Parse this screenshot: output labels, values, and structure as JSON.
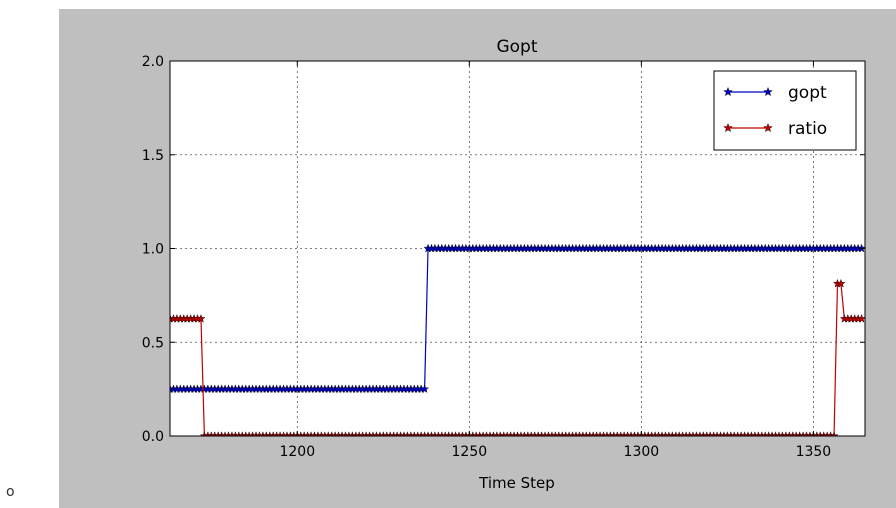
{
  "corner_mark": "o",
  "chart_data": {
    "type": "line",
    "title": "Gopt",
    "xlabel": "Time Step",
    "ylabel": "",
    "xlim": [
      1163,
      1365
    ],
    "ylim": [
      0.0,
      2.0
    ],
    "xticks": [
      1200,
      1250,
      1300,
      1350
    ],
    "yticks": [
      "0.0",
      "0.5",
      "1.0",
      "1.5",
      "2.0"
    ],
    "grid": true,
    "legend_position": "top-right",
    "series": [
      {
        "name": "gopt",
        "color": "#0000bf",
        "marker": "star",
        "segments": [
          {
            "x_start": 1163,
            "x_end": 1237,
            "y": 0.25
          },
          {
            "x_start": 1238,
            "x_end": 1364,
            "y": 1.0
          }
        ]
      },
      {
        "name": "ratio",
        "color": "#bf0000",
        "marker": "star",
        "segments": [
          {
            "x_start": 1163,
            "x_end": 1172,
            "y": 0.625
          },
          {
            "x_start": 1173,
            "x_end": 1356,
            "y": 0.0
          },
          {
            "x_start": 1357,
            "x_end": 1358,
            "y": 0.8125
          },
          {
            "x_start": 1359,
            "x_end": 1364,
            "y": 0.625
          }
        ]
      }
    ]
  }
}
